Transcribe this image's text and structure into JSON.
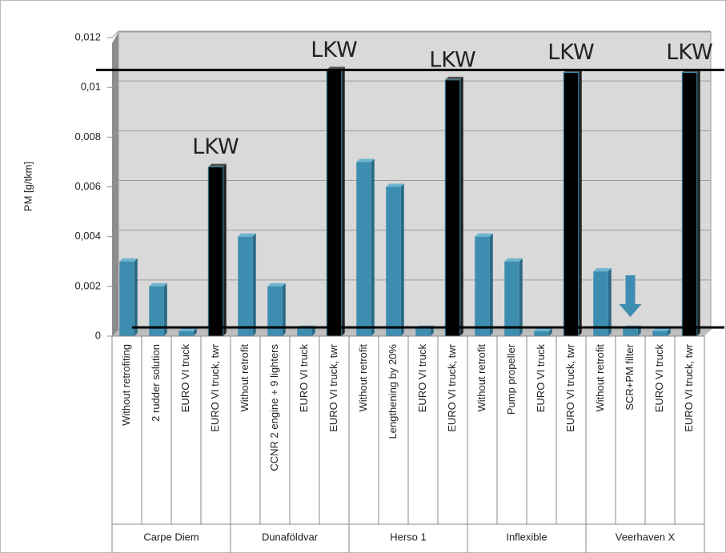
{
  "chart_data": {
    "type": "bar",
    "y_label": "PM [g/tkm]",
    "categories": [
      "Without retrofiting",
      "2 rudder solution",
      "EURO VI truck",
      "EURO VI truck, twr",
      "Without retrofit",
      "CCNR 2 engine + 9 lighters",
      "EURO VI truck",
      "EURO VI truck, twr",
      "Without retrofit",
      "Lengthening by 20%",
      "EURO VI truck",
      "EURO VI truck, twr",
      "Without retrofit",
      "Pump propeller",
      "EURO VI truck",
      "EURO VI truck, twr",
      "Without retrofit",
      "SCR+PM filter",
      "EURO VI truck",
      "EURO VI truck, twr"
    ],
    "groups": [
      "Carpe Diem",
      "Dunaföldvar",
      "Herso 1",
      "Inflexible",
      "Veerhaven X"
    ],
    "values": [
      0.003,
      0.002,
      0.0002,
      0.0068,
      0.004,
      0.002,
      0.0003,
      0.0107,
      0.007,
      0.006,
      0.0003,
      0.0103,
      0.004,
      0.003,
      0.0002,
      0.0106,
      0.0026,
      0.0003,
      0.0002,
      0.0106
    ],
    "colors": [
      "#3d8db0",
      "#3d8db0",
      "#3d8db0",
      "#000000",
      "#3d8db0",
      "#3d8db0",
      "#3d8db0",
      "#000000",
      "#3d8db0",
      "#3d8db0",
      "#3d8db0",
      "#000000",
      "#3d8db0",
      "#3d8db0",
      "#3d8db0",
      "#000000",
      "#3d8db0",
      "#3d8db0",
      "#3d8db0",
      "#000000"
    ],
    "annotations": [
      "LKW",
      "LKW",
      "LKW",
      "LKW",
      "LKW"
    ],
    "reference_lines": [
      0.0107,
      0.00035
    ],
    "ylim": [
      0,
      0.012
    ],
    "yticks": [
      0,
      {
        "value": 0.002,
        "label": "0,002"
      },
      {
        "value": 0.004,
        "label": "0,004"
      },
      {
        "value": 0.006,
        "label": "0,006"
      },
      {
        "value": 0.008,
        "label": "0,008"
      },
      {
        "value": 0.01,
        "label": "0,01"
      },
      {
        "value": 0.012,
        "label": "0,012"
      }
    ],
    "grid": true
  }
}
